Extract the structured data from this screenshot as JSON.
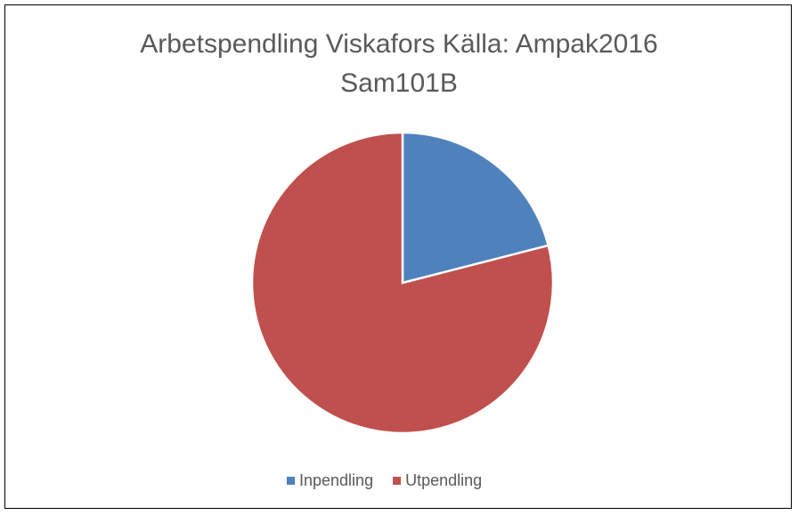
{
  "chart_data": {
    "type": "pie",
    "title": "Arbetspendling Viskafors Källa: Ampak2016 Sam101B",
    "categories": [
      "Inpendling",
      "Utpendling"
    ],
    "values": [
      21,
      79
    ],
    "colors": [
      "#4f81bd",
      "#c0504d"
    ],
    "legend": "bottom"
  }
}
